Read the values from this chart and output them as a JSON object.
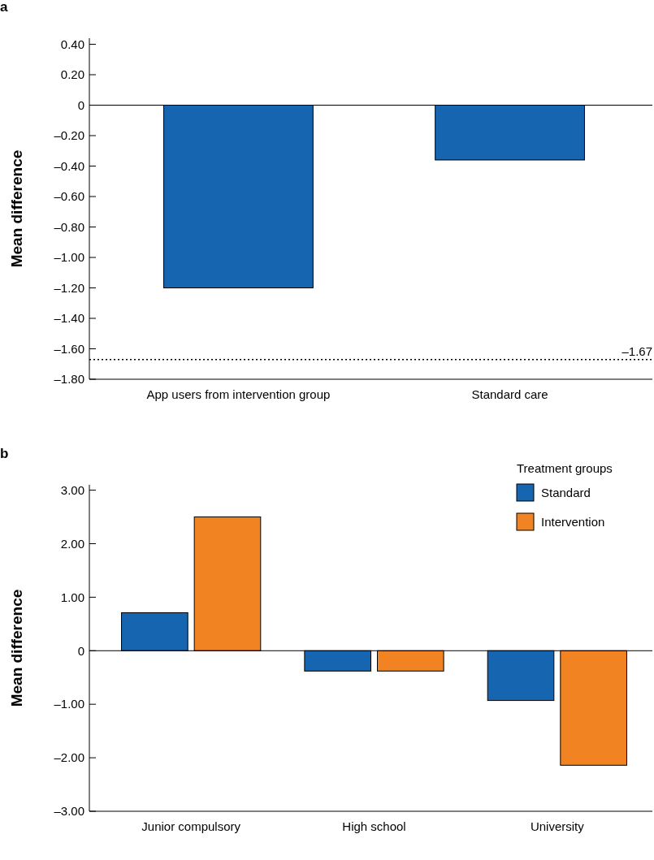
{
  "chart_data": [
    {
      "type": "bar",
      "title": "a",
      "ylabel": "Mean difference",
      "categories": [
        "App users from intervention group",
        "Standard care"
      ],
      "series": [
        {
          "color": "#1565b0",
          "values": [
            -1.2,
            -0.36
          ]
        }
      ],
      "ylim": [
        -1.8,
        0.44
      ],
      "yticks": [
        {
          "value": 0.4,
          "label": "0.40"
        },
        {
          "value": 0.2,
          "label": "0.20"
        },
        0,
        {
          "value": -0.2,
          "label": "–0.20"
        },
        {
          "value": -0.4,
          "label": "–0.40"
        },
        {
          "value": -0.6,
          "label": "–0.60"
        },
        {
          "value": -0.8,
          "label": "–0.80"
        },
        {
          "value": -1,
          "label": "–1.00"
        },
        {
          "value": -1.2,
          "label": "–1.20"
        },
        {
          "value": -1.4,
          "label": "–1.40"
        },
        {
          "value": -1.6,
          "label": "–1.60"
        },
        {
          "value": -1.8,
          "label": "–1.80"
        }
      ],
      "ref_lines": [
        {
          "axis": "y",
          "value": -1.67,
          "label": "–1.67",
          "line_style": "dotted",
          "color": "#000000"
        }
      ]
    },
    {
      "type": "bar",
      "title": "b",
      "ylabel": "Mean difference",
      "legend_title": "Treatment groups",
      "legend": "top right",
      "categories": [
        "Junior compulsory",
        "High school",
        "University"
      ],
      "series": [
        {
          "name": "Standard",
          "color": "#1565b0",
          "values": [
            0.71,
            -0.38,
            -0.93
          ]
        },
        {
          "name": "Intervention",
          "color": "#f28322",
          "values": [
            2.5,
            -0.38,
            -2.14
          ]
        }
      ],
      "ylim": [
        -3,
        3.1
      ],
      "yticks": [
        {
          "value": 3,
          "label": "3.00"
        },
        {
          "value": 2,
          "label": "2.00"
        },
        {
          "value": 1,
          "label": "1.00"
        },
        0,
        {
          "value": -1,
          "label": "–1.00"
        },
        {
          "value": -2,
          "label": "–2.00"
        },
        {
          "value": -3,
          "label": "–3.00"
        }
      ]
    }
  ]
}
